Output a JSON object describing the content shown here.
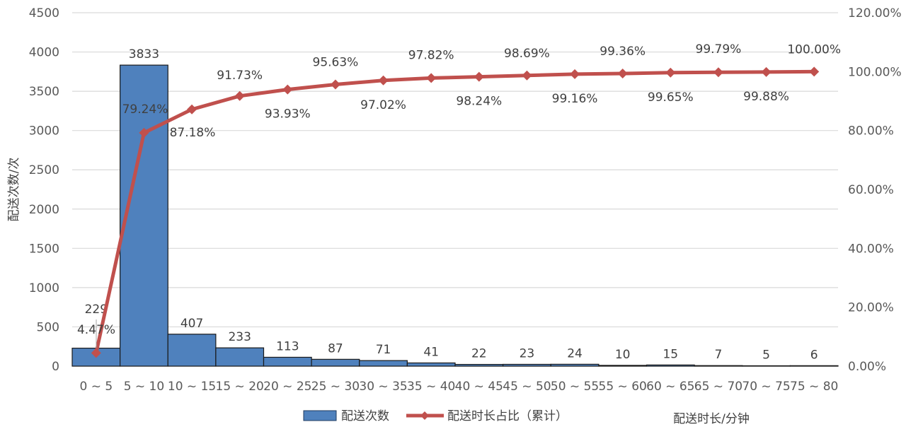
{
  "chart_data": {
    "type": "bar",
    "categories": [
      "0 ~ 5",
      "5 ~ 10",
      "10 ~ 15",
      "15 ~ 20",
      "20 ~ 25",
      "25 ~ 30",
      "30 ~ 35",
      "35 ~ 40",
      "40 ~ 45",
      "45 ~ 50",
      "50 ~ 55",
      "55 ~ 60",
      "60 ~ 65",
      "65 ~ 70",
      "70 ~ 75",
      "75 ~ 80"
    ],
    "series": [
      {
        "name": "配送次数",
        "type": "bar",
        "axis": "left",
        "color": "#4f81bd",
        "values": [
          229,
          3833,
          407,
          233,
          113,
          87,
          71,
          41,
          22,
          23,
          24,
          10,
          15,
          7,
          5,
          6
        ],
        "labels": [
          "229",
          "3833",
          "407",
          "233",
          "113",
          "87",
          "71",
          "41",
          "22",
          "23",
          "24",
          "10",
          "15",
          "7",
          "5",
          "6"
        ]
      },
      {
        "name": "配送时长占比（累计）",
        "type": "line",
        "axis": "right",
        "color": "#c0504d",
        "values": [
          4.47,
          79.24,
          87.18,
          91.73,
          93.93,
          95.63,
          97.02,
          97.82,
          98.24,
          98.69,
          99.16,
          99.36,
          99.65,
          99.79,
          99.88,
          100.0
        ],
        "labels": [
          "4.47%",
          "79.24%",
          "87.18%",
          "91.73%",
          "93.93%",
          "95.63%",
          "97.02%",
          "97.82%",
          "98.24%",
          "98.69%",
          "99.16%",
          "99.36%",
          "99.65%",
          "99.79%",
          "99.88%",
          "100.00%"
        ]
      }
    ],
    "ylabel": "配送次数/次",
    "xlabel": "配送时长/分钟",
    "ylim": [
      0,
      4500
    ],
    "y2lim": [
      0,
      120
    ],
    "yticks": [
      "0",
      "500",
      "1000",
      "1500",
      "2000",
      "2500",
      "3000",
      "3500",
      "4000",
      "4500"
    ],
    "y2ticks": [
      "0.00%",
      "20.00%",
      "40.00%",
      "60.00%",
      "80.00%",
      "100.00%",
      "120.00%"
    ],
    "grid": true,
    "legend_position": "bottom"
  }
}
